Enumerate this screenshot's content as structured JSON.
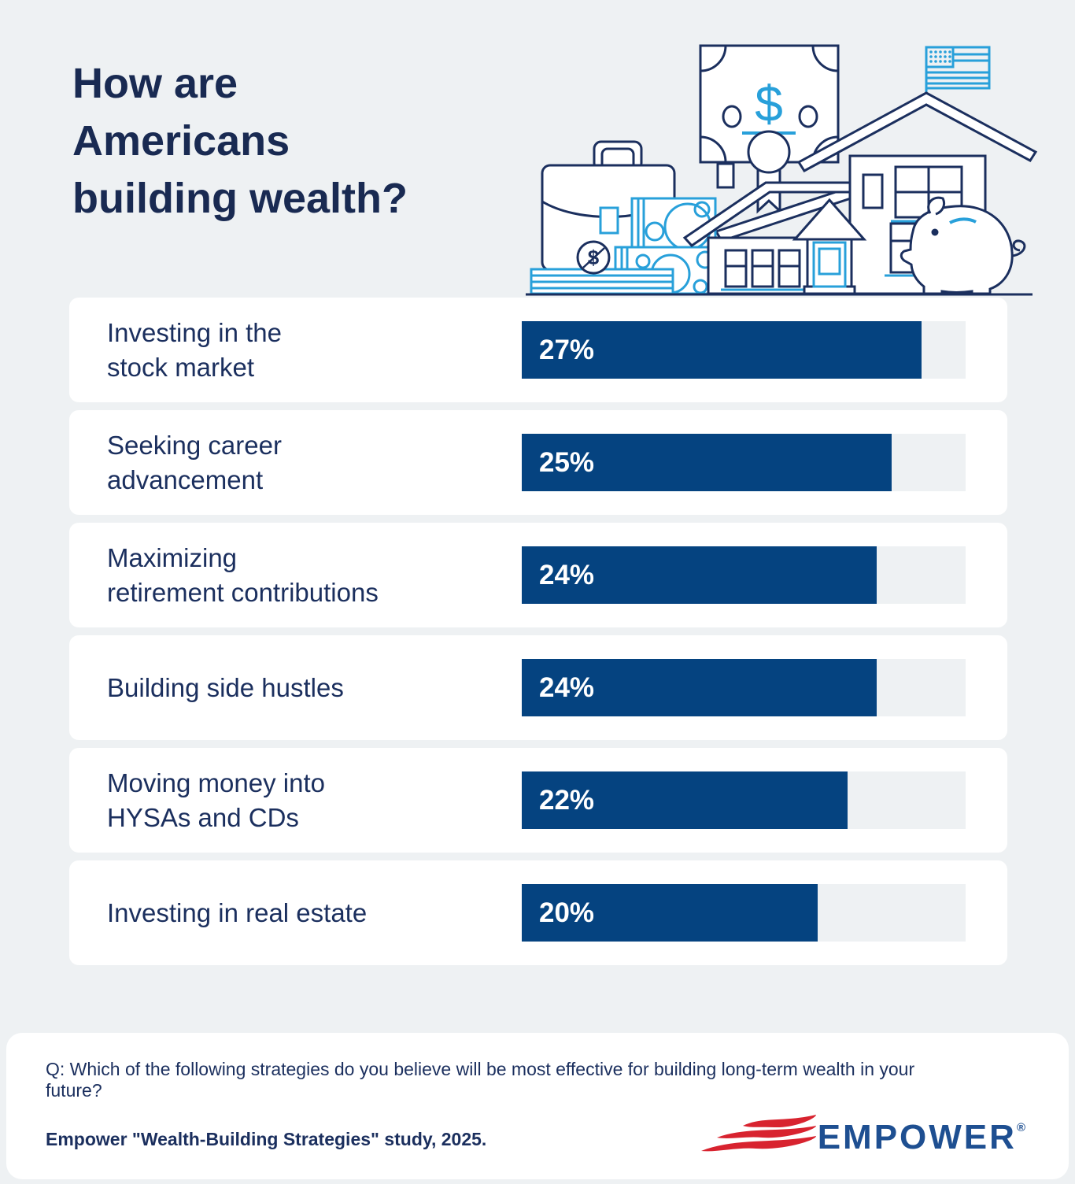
{
  "page": {
    "background": "#eef1f3",
    "card_color": "#ffffff"
  },
  "title": {
    "lines": [
      "How are",
      "Americans",
      "building wealth?"
    ],
    "color": "#192a52"
  },
  "illustration": {
    "name": "wealth-illustration",
    "elements": [
      "dollar-bill",
      "award-medal",
      "american-flag",
      "houses",
      "briefcase",
      "cash-bundles",
      "dollar-coin",
      "bill-stack",
      "piggy-bank"
    ],
    "navy": "#1b2f5e",
    "light_blue": "#28a0da"
  },
  "chart_data": {
    "type": "bar",
    "orientation": "horizontal",
    "title": "How are Americans building wealth?",
    "categories": [
      "Investing in the stock market",
      "Seeking career advancement",
      "Maximizing retirement contributions",
      "Building side hustles",
      "Moving money into HYSAs and CDs",
      "Investing in real estate"
    ],
    "values": [
      27,
      25,
      24,
      24,
      22,
      20
    ],
    "value_labels": [
      "27%",
      "25%",
      "24%",
      "24%",
      "22%",
      "20%"
    ],
    "xmax": 30,
    "xlabel": "",
    "ylabel": "",
    "grid": false,
    "legend": false,
    "bar_color": "#054380",
    "track_color": "#eef1f3",
    "value_label_position": "inside-left"
  },
  "rows": [
    {
      "lines": [
        "Investing in the",
        "stock market"
      ],
      "value_label": "27%"
    },
    {
      "lines": [
        "Seeking career",
        "advancement"
      ],
      "value_label": "25%"
    },
    {
      "lines": [
        "Maximizing",
        "retirement contributions"
      ],
      "value_label": "24%"
    },
    {
      "lines": [
        "Building side hustles"
      ],
      "value_label": "24%"
    },
    {
      "lines": [
        "Moving money into",
        "HYSAs and CDs"
      ],
      "value_label": "22%"
    },
    {
      "lines": [
        "Investing in real estate"
      ],
      "value_label": "20%"
    }
  ],
  "footer": {
    "question": "Q: Which of the following strategies do you believe will be most effective for building long-term wealth in your future?",
    "source": "Empower \"Wealth-Building Strategies\" study, 2025.",
    "logo": {
      "text": "EMPOWER",
      "registered": "®",
      "blue": "#1e4f91",
      "red": "#d8232f"
    }
  }
}
